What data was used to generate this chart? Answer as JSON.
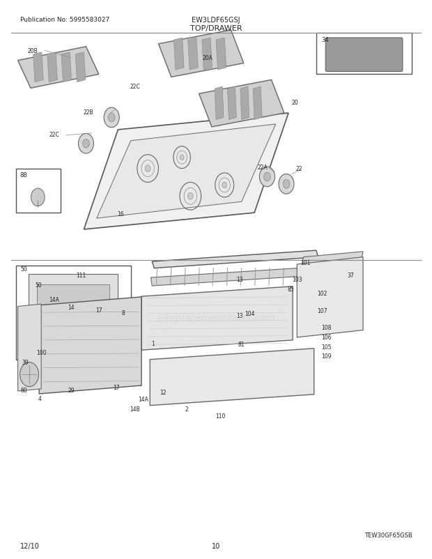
{
  "title_model": "EW3LDF65GSJ",
  "title_section": "TOP/DRAWER",
  "pub_no": "Publication No: 5995583027",
  "date": "12/10",
  "page": "10",
  "watermark": "eReplacementParts.com",
  "model_ref": "TEW30GF65GSB",
  "bg_color": "#ffffff",
  "line_color": "#333333",
  "text_color": "#222222",
  "fig_width": 6.2,
  "fig_height": 8.03,
  "dpi": 100
}
